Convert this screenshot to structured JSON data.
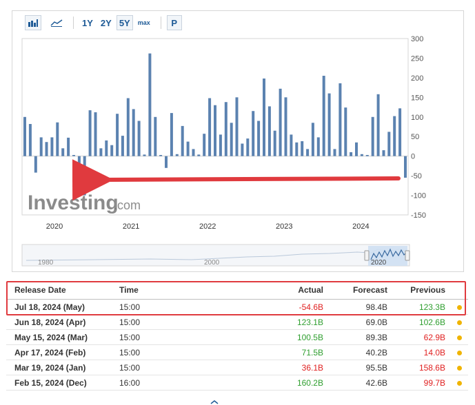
{
  "toolbar": {
    "range_buttons": [
      "1Y",
      "2Y",
      "5Y",
      "max"
    ],
    "selected_range": "5Y",
    "p_label": "P",
    "icons": [
      "bar-chart-icon",
      "line-chart-icon"
    ]
  },
  "chart_data": {
    "type": "bar",
    "watermark": "Investing",
    "watermark_suffix": ".com",
    "x_tick_labels": [
      "2020",
      "2021",
      "2022",
      "2023",
      "2024"
    ],
    "y_tick_labels": [
      "300",
      "250",
      "200",
      "150",
      "100",
      "50",
      "0",
      "-50",
      "-100",
      "-150"
    ],
    "ylim": [
      -150,
      300
    ],
    "bar_color": "#5b82b0",
    "values": [
      100,
      82,
      -42,
      48,
      36,
      48,
      86,
      20,
      47,
      3,
      -80,
      -100,
      117,
      112,
      20,
      40,
      28,
      108,
      52,
      148,
      120,
      90,
      4,
      262,
      100,
      3,
      -30,
      110,
      5,
      77,
      37,
      18,
      4,
      57,
      148,
      130,
      55,
      138,
      85,
      150,
      32,
      45,
      115,
      90,
      198,
      127,
      65,
      172,
      150,
      55,
      35,
      38,
      18,
      85,
      48,
      205,
      160,
      18,
      186,
      124,
      10,
      35,
      5,
      3,
      100,
      158,
      15,
      62,
      102,
      122,
      -55
    ],
    "navigator_labels": [
      "1980",
      "2000",
      "2020"
    ]
  },
  "arrow_color": "#e03a3e",
  "table": {
    "headers": {
      "release_date": "Release Date",
      "time": "Time",
      "actual": "Actual",
      "forecast": "Forecast",
      "previous": "Previous"
    },
    "rows": [
      {
        "release_date": "Jul 18, 2024 (May)",
        "time": "15:00",
        "actual": "-54.6B",
        "actual_sign": "neg",
        "forecast": "98.4B",
        "previous": "123.3B",
        "previous_sign": "pos"
      },
      {
        "release_date": "Jun 18, 2024 (Apr)",
        "time": "15:00",
        "actual": "123.1B",
        "actual_sign": "pos",
        "forecast": "69.0B",
        "previous": "102.6B",
        "previous_sign": "pos"
      },
      {
        "release_date": "May 15, 2024 (Mar)",
        "time": "15:00",
        "actual": "100.5B",
        "actual_sign": "pos",
        "forecast": "89.3B",
        "previous": "62.9B",
        "previous_sign": "neg"
      },
      {
        "release_date": "Apr 17, 2024 (Feb)",
        "time": "15:00",
        "actual": "71.5B",
        "actual_sign": "pos",
        "forecast": "40.2B",
        "previous": "14.0B",
        "previous_sign": "neg"
      },
      {
        "release_date": "Mar 19, 2024 (Jan)",
        "time": "15:00",
        "actual": "36.1B",
        "actual_sign": "neg",
        "forecast": "95.5B",
        "previous": "158.6B",
        "previous_sign": "neg"
      },
      {
        "release_date": "Feb 15, 2024 (Dec)",
        "time": "16:00",
        "actual": "160.2B",
        "actual_sign": "pos",
        "forecast": "42.6B",
        "previous": "99.7B",
        "previous_sign": "neg"
      }
    ]
  },
  "colors": {
    "positive": "#2e9e2e",
    "negative": "#e02020",
    "highlight_border": "#e03a3e",
    "status_dot": "#f0b400"
  }
}
